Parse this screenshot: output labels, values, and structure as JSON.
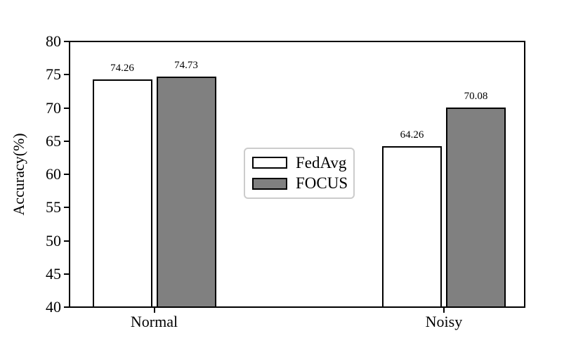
{
  "figure": {
    "background": "#ffffff"
  },
  "chart_data": {
    "type": "bar",
    "title": "",
    "xlabel": "",
    "ylabel": "Accuracy(%)",
    "categories": [
      "Normal",
      "Noisy"
    ],
    "series": [
      {
        "name": "FedAvg",
        "fill": "#ffffff",
        "values": [
          74.26,
          64.26
        ],
        "labels": [
          "74.26",
          "64.26"
        ]
      },
      {
        "name": "FOCUS",
        "fill": "#808080",
        "values": [
          74.73,
          70.08
        ],
        "labels": [
          "74.73",
          "70.08"
        ]
      }
    ],
    "ylim": [
      40,
      80
    ],
    "yticks": [
      "40",
      "45",
      "50",
      "55",
      "60",
      "65",
      "70",
      "75",
      "80"
    ],
    "grid": false,
    "legend_position": "center",
    "bar_edge_color": "#000000",
    "axis_color": "#000000",
    "legend_border_color": "#cccccc"
  }
}
